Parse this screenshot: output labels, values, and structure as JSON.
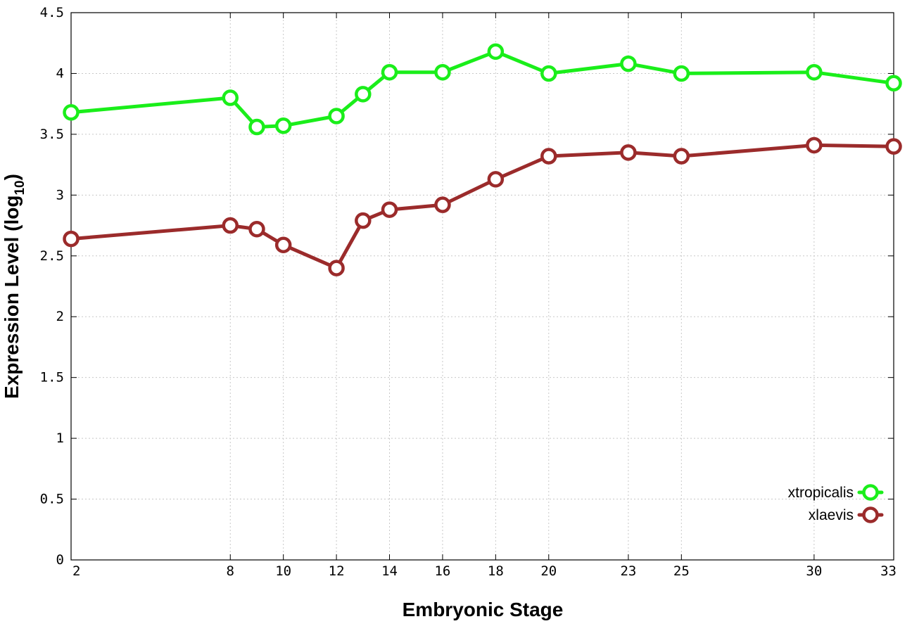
{
  "chart_data": {
    "type": "line",
    "xlabel": "Embryonic Stage",
    "ylabel_main": "Expression Level (log",
    "ylabel_sub": "10",
    "ylabel_close": ")",
    "xlim": [
      2,
      33
    ],
    "ylim": [
      0,
      4.5
    ],
    "xticks": [
      2,
      8,
      10,
      12,
      14,
      16,
      18,
      20,
      23,
      25,
      30,
      33
    ],
    "yticks": [
      "0",
      "0.5",
      "1",
      "1.5",
      "2",
      "2.5",
      "3",
      "3.5",
      "4",
      "4.5"
    ],
    "grid": true,
    "legend_position": "bottom-right",
    "x": [
      2,
      8,
      9,
      10,
      12,
      13,
      14,
      16,
      18,
      20,
      23,
      25,
      30,
      33
    ],
    "series": [
      {
        "name": "xtropicalis",
        "color": "#1aee1a",
        "values": [
          3.68,
          3.8,
          3.56,
          3.57,
          3.65,
          3.83,
          4.01,
          4.01,
          4.18,
          4.0,
          4.08,
          4.0,
          4.01,
          3.92
        ]
      },
      {
        "name": "xlaevis",
        "color": "#9b2b2b",
        "values": [
          2.64,
          2.75,
          2.72,
          2.59,
          2.4,
          2.79,
          2.88,
          2.92,
          3.13,
          3.32,
          3.35,
          3.32,
          3.41,
          3.4
        ]
      }
    ]
  }
}
